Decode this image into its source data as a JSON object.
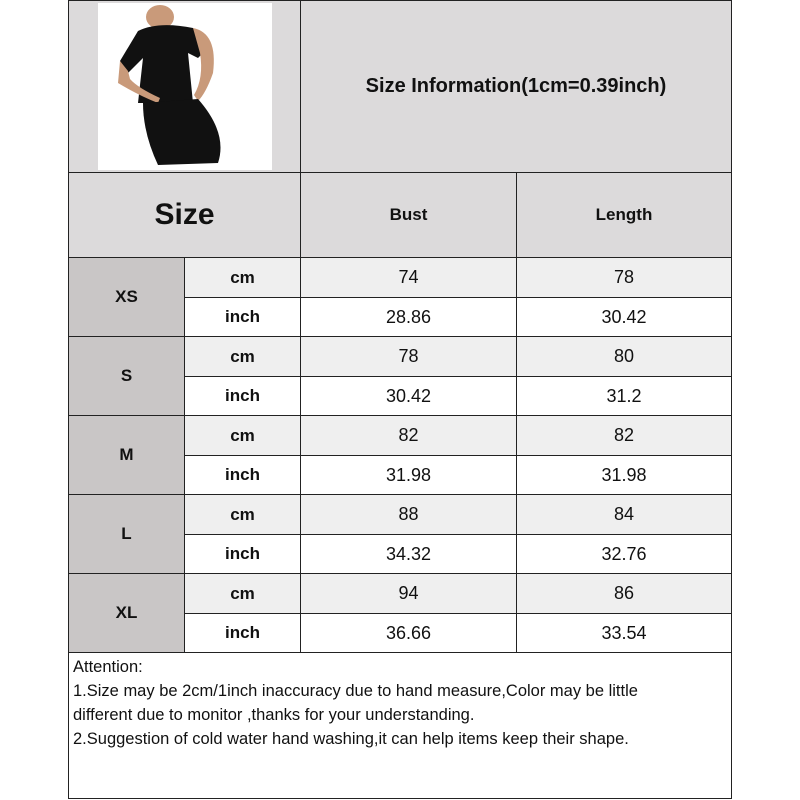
{
  "header": {
    "title": "Size Information(1cm=0.39inch)",
    "size_label": "Size",
    "columns": [
      "Bust",
      "Length"
    ]
  },
  "product_image": {
    "description_icon": "product-photo-black-dress"
  },
  "units": {
    "cm": "cm",
    "inch": "inch"
  },
  "rows": [
    {
      "size": "XS",
      "cm": [
        "74",
        "78"
      ],
      "inch": [
        "28.86",
        "30.42"
      ]
    },
    {
      "size": "S",
      "cm": [
        "78",
        "80"
      ],
      "inch": [
        "30.42",
        "31.2"
      ]
    },
    {
      "size": "M",
      "cm": [
        "82",
        "82"
      ],
      "inch": [
        "31.98",
        "31.98"
      ]
    },
    {
      "size": "L",
      "cm": [
        "88",
        "84"
      ],
      "inch": [
        "34.32",
        "32.76"
      ]
    },
    {
      "size": "XL",
      "cm": [
        "94",
        "86"
      ],
      "inch": [
        "36.66",
        "33.54"
      ]
    }
  ],
  "attention": {
    "heading": "Attention:",
    "lines": [
      "1.Size may be 2cm/1inch inaccuracy due to hand measure,Color may be little",
      "different due to monitor ,thanks for your understanding.",
      "2.Suggestion of cold water hand washing,it can help items keep their shape."
    ]
  },
  "colors": {
    "header_bg": "#dcdadb",
    "size_cell_bg": "#c9c6c6",
    "cm_row_bg": "#efefef",
    "border": "#222222"
  }
}
